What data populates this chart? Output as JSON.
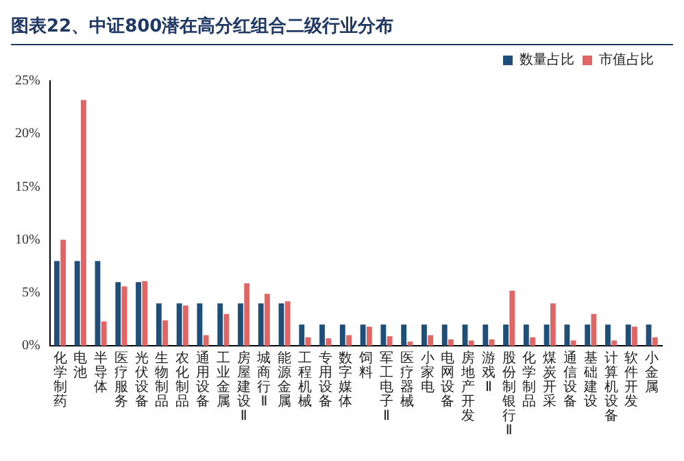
{
  "chart_data": {
    "type": "bar",
    "title": "图表22、中证800潜在高分红组合二级行业分布",
    "categories": [
      "化学制药",
      "电池",
      "半导体",
      "医疗服务",
      "光伏设备",
      "生物制品",
      "农化制品",
      "通用设备",
      "工业金属",
      "房屋建设Ⅱ",
      "城商行Ⅱ",
      "能源金属",
      "工程机械",
      "专用设备",
      "数字媒体",
      "饲料",
      "军工电子Ⅱ",
      "医疗器械",
      "小家电",
      "电网设备",
      "房地产开发",
      "游戏Ⅱ",
      "股份制银行Ⅱ",
      "化学制品",
      "煤炭开采",
      "通信设备",
      "基础建设",
      "计算机设备",
      "软件开发",
      "小金属"
    ],
    "series": [
      {
        "name": "数量占比",
        "color": "#1f4e79",
        "values": [
          8,
          8,
          8,
          6,
          6,
          4,
          4,
          4,
          4,
          4,
          4,
          4,
          2,
          2,
          2,
          2,
          2,
          2,
          2,
          2,
          2,
          2,
          2,
          2,
          2,
          2,
          2,
          2,
          2,
          2
        ]
      },
      {
        "name": "市值占比",
        "color": "#e06666",
        "values": [
          10,
          23.2,
          2.3,
          5.6,
          6.1,
          2.4,
          3.8,
          1,
          3,
          5.9,
          4.9,
          4.2,
          0.8,
          0.7,
          1,
          1.8,
          0.9,
          0.4,
          1,
          0.6,
          0.5,
          0.6,
          5.2,
          0.8,
          4,
          0.5,
          3,
          0.5,
          1.8,
          0.8
        ]
      }
    ],
    "ylim": [
      0,
      25
    ],
    "yticks": [
      {
        "value": 0,
        "label": "0%"
      },
      {
        "value": 5,
        "label": "5%"
      },
      {
        "value": 10,
        "label": "10%"
      },
      {
        "value": 15,
        "label": "15%"
      },
      {
        "value": 20,
        "label": "20%"
      },
      {
        "value": 25,
        "label": "25%"
      }
    ],
    "grid": false,
    "legend": "top right"
  }
}
